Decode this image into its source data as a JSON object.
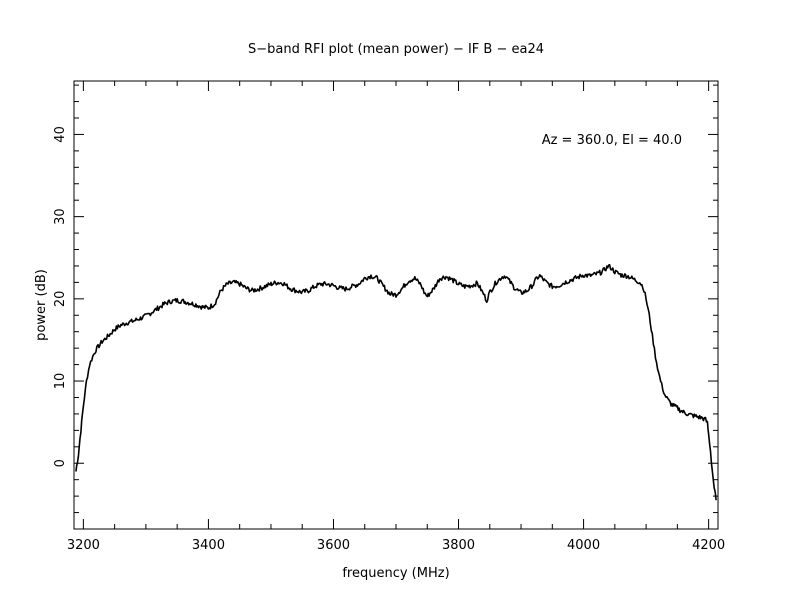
{
  "chart_data": {
    "type": "line",
    "title": "S−band RFI plot (mean power) − IF B − ea24",
    "xlabel": "frequency (MHz)",
    "ylabel": "power (dB)",
    "annotation": "Az = 360.0, El = 40.0",
    "xlim": [
      3185,
      4215
    ],
    "ylim": [
      -8,
      46.5
    ],
    "x_major_ticks": [
      3200,
      3400,
      3600,
      3800,
      4000,
      4200
    ],
    "x_tick_labels": [
      "3200",
      "3400",
      "3600",
      "3800",
      "4000",
      "4200"
    ],
    "x_minor_step": 50,
    "y_major_ticks": [
      0,
      10,
      20,
      30,
      40
    ],
    "y_tick_labels": [
      "0",
      "10",
      "20",
      "30",
      "40"
    ],
    "y_minor_step": 2,
    "grid": false,
    "line_color": "#000000",
    "series": [
      {
        "x": [
          3188,
          3192,
          3196,
          3200,
          3205,
          3210,
          3215,
          3220,
          3225,
          3230,
          3240,
          3250,
          3260,
          3270,
          3280,
          3290,
          3300,
          3310,
          3320,
          3330,
          3340,
          3350,
          3360,
          3370,
          3380,
          3390,
          3400,
          3410,
          3420,
          3430,
          3440,
          3450,
          3460,
          3470,
          3480,
          3490,
          3500,
          3510,
          3520,
          3530,
          3540,
          3550,
          3560,
          3570,
          3580,
          3590,
          3600,
          3610,
          3620,
          3630,
          3640,
          3650,
          3660,
          3670,
          3680,
          3690,
          3700,
          3710,
          3720,
          3730,
          3740,
          3745,
          3750,
          3760,
          3770,
          3780,
          3790,
          3800,
          3810,
          3820,
          3830,
          3840,
          3845,
          3850,
          3860,
          3870,
          3875,
          3880,
          3890,
          3900,
          3910,
          3920,
          3925,
          3930,
          3940,
          3950,
          3960,
          3970,
          3980,
          3990,
          4000,
          4010,
          4020,
          4030,
          4040,
          4045,
          4050,
          4060,
          4070,
          4080,
          4090,
          4095,
          4100,
          4105,
          4110,
          4115,
          4120,
          4125,
          4130,
          4135,
          4140,
          4150,
          4160,
          4170,
          4180,
          4190,
          4195,
          4198,
          4200,
          4203,
          4206,
          4209,
          4212
        ],
        "y": [
          -1.0,
          1.0,
          4.0,
          7.0,
          10.0,
          12.0,
          13.0,
          13.8,
          14.3,
          14.8,
          15.5,
          16.3,
          16.8,
          17.1,
          17.3,
          17.6,
          17.9,
          18.4,
          18.9,
          19.4,
          19.7,
          19.8,
          19.7,
          19.5,
          19.3,
          19.0,
          18.9,
          19.4,
          21.0,
          21.8,
          22.0,
          21.8,
          21.3,
          21.0,
          21.2,
          21.5,
          21.8,
          22.0,
          21.9,
          21.3,
          21.0,
          20.8,
          21.0,
          21.5,
          21.8,
          21.8,
          21.6,
          21.3,
          21.2,
          21.5,
          21.8,
          22.5,
          22.8,
          22.5,
          21.5,
          20.6,
          20.5,
          21.3,
          22.2,
          22.5,
          21.7,
          20.8,
          20.3,
          21.2,
          22.5,
          22.7,
          22.3,
          21.8,
          21.5,
          21.6,
          21.9,
          20.6,
          19.8,
          20.8,
          22.0,
          22.7,
          22.8,
          22.3,
          21.3,
          20.7,
          21.0,
          21.8,
          22.5,
          22.8,
          22.0,
          21.5,
          21.6,
          22.0,
          22.3,
          22.6,
          22.9,
          22.8,
          23.0,
          23.3,
          24.0,
          23.7,
          23.3,
          22.9,
          22.8,
          22.4,
          22.0,
          21.5,
          20.0,
          18.0,
          15.5,
          13.0,
          11.0,
          9.5,
          8.3,
          7.7,
          7.2,
          6.7,
          6.2,
          5.9,
          5.7,
          5.5,
          5.3,
          4.9,
          3.5,
          1.5,
          -1.0,
          -3.0,
          -4.5
        ]
      }
    ]
  }
}
